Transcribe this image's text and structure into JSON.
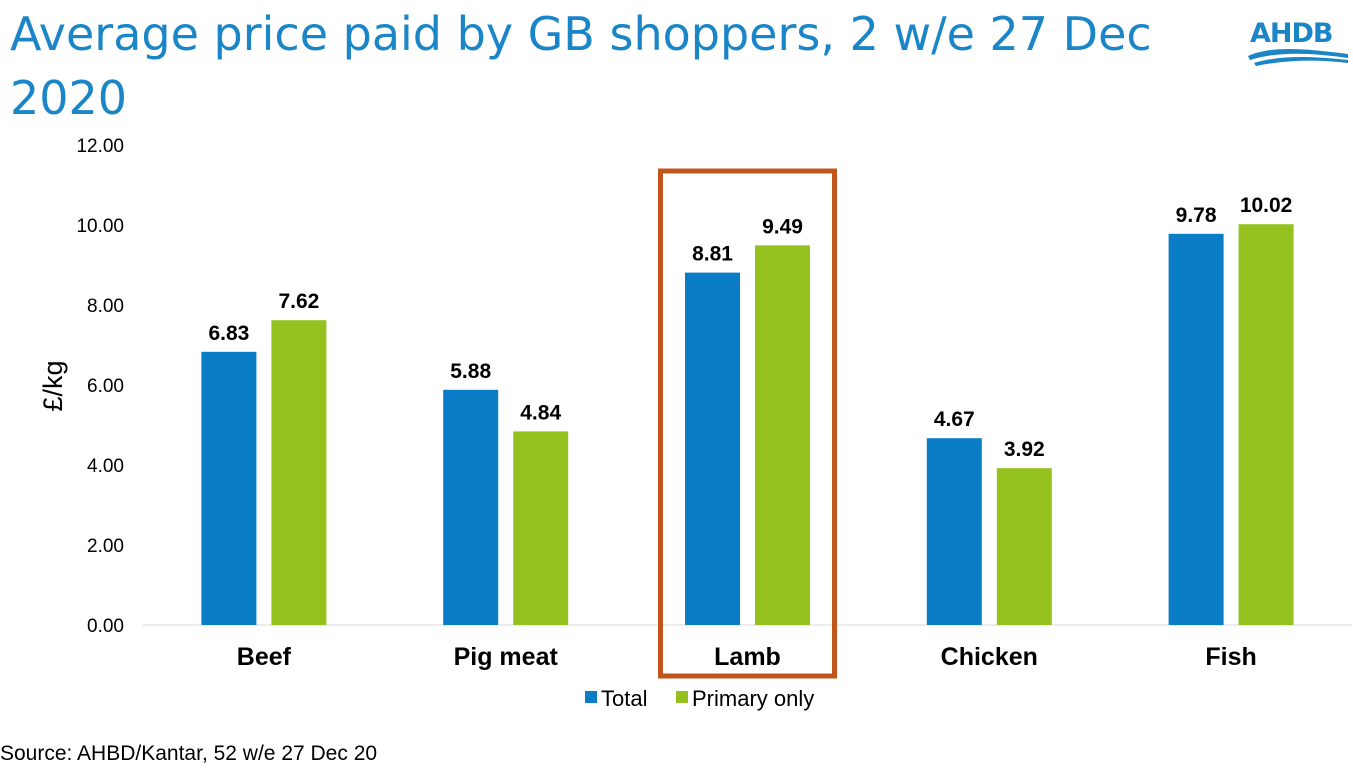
{
  "title": "Average price paid by GB shoppers, 2 w/e 27 Dec 2020",
  "logo": {
    "text": "AHDB",
    "color": "#1a86c7"
  },
  "source": "Source: AHBD/Kantar, 52 w/e 27 Dec 20",
  "highlight": {
    "category": "Lamb",
    "color": "#c0561c"
  },
  "chart_data": {
    "type": "bar",
    "title": "Average price paid by GB shoppers, 2 w/e 27 Dec 2020",
    "ylabel": "£/kg",
    "xlabel": "",
    "ylim": [
      0,
      12
    ],
    "yticks": [
      "0.00",
      "2.00",
      "4.00",
      "6.00",
      "8.00",
      "10.00",
      "12.00"
    ],
    "categories": [
      "Beef",
      "Pig meat",
      "Lamb",
      "Chicken",
      "Fish"
    ],
    "series": [
      {
        "name": "Total",
        "color": "#0a7dc6",
        "values": [
          6.83,
          5.88,
          8.81,
          4.67,
          9.78
        ],
        "labels": [
          "6.83",
          "5.88",
          "8.81",
          "4.67",
          "9.78"
        ]
      },
      {
        "name": "Primary only",
        "color": "#95c11f",
        "values": [
          7.62,
          4.84,
          9.49,
          3.92,
          10.02
        ],
        "labels": [
          "7.62",
          "4.84",
          "9.49",
          "3.92",
          "10.02"
        ]
      }
    ],
    "grid": false,
    "legend": "bottom-center"
  }
}
